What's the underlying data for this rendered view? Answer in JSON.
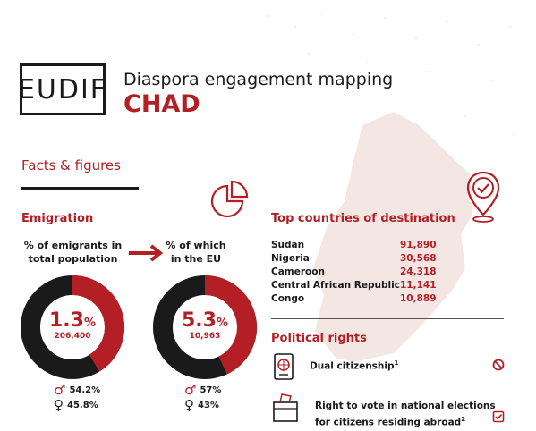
{
  "header": {
    "logo_text": "EUDIF",
    "title": "Diaspora engagement mapping",
    "country": "CHAD"
  },
  "facts_heading": "Facts & figures",
  "emigration": {
    "heading": "Emigration",
    "total_label_line1": "% of emigrants in",
    "total_label_line2": "total population",
    "eu_label_line1": "% of which",
    "eu_label_line2": "in the EU",
    "total": {
      "percent_value": "1.3",
      "percent_sign": "%",
      "count": "206,400",
      "male": "54.2",
      "female": "45.8",
      "share": 0.413
    },
    "eu": {
      "percent_value": "5.3",
      "percent_sign": "%",
      "count": "10,963",
      "male": "57",
      "female": "43",
      "share": 0.43
    },
    "male_symbol": "♂",
    "female_symbol": "♀",
    "pct_suffix": "%"
  },
  "destinations": {
    "heading": "Top countries of destination",
    "rows": [
      {
        "country": "Sudan",
        "value": "91,890"
      },
      {
        "country": "Nigeria",
        "value": "30,568"
      },
      {
        "country": "Cameroon",
        "value": "24,318"
      },
      {
        "country": "Central African Republic",
        "value": "11,141"
      },
      {
        "country": "Congo",
        "value": "10,889"
      }
    ]
  },
  "political": {
    "heading": "Political rights",
    "dual_citizenship": "Dual citizenship",
    "dual_citizenship_note": "1",
    "vote_line1": "Right to vote in national elections",
    "vote_line2": "for citizens residing abroad",
    "vote_note": "2"
  },
  "colors": {
    "accent": "#b31f24",
    "dark": "#1a1a1a",
    "map": "#f4e6e3"
  }
}
